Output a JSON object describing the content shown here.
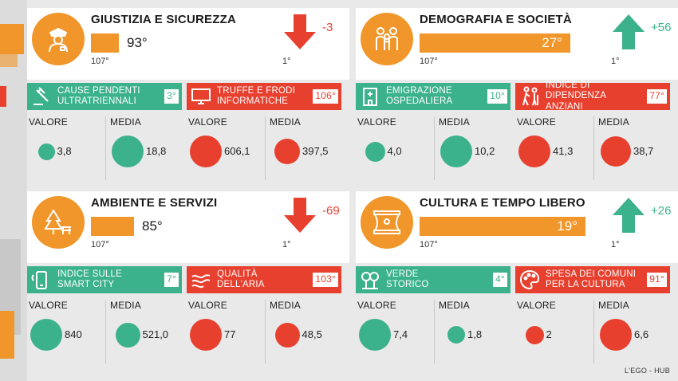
{
  "credit": "L'EGO - HUB",
  "axis_min": "107°",
  "axis_max": "1°",
  "stat_labels": {
    "valore": "VALORE",
    "media": "MEDIA"
  },
  "panels": [
    {
      "title": "GIUSTIZIA E SICUREZZA",
      "icon": "police-officer-icon",
      "rank": "93°",
      "rank_value": 93,
      "delta": "-3",
      "trend": "down",
      "indicators": [
        {
          "label_1": "CAUSE PENDENTI",
          "label_2": "ULTRATRIENNALI",
          "rank": "3°",
          "color": "green",
          "icon": "gavel-icon",
          "valore": "3,8",
          "media": "18,8",
          "valore_color": "green",
          "media_color": "green"
        },
        {
          "label_1": "TRUFFE E FRODI",
          "label_2": "INFORMATICHE",
          "rank": "106°",
          "color": "red",
          "icon": "computer-icon",
          "valore": "606,1",
          "media": "397,5",
          "valore_color": "red",
          "media_color": "red"
        }
      ]
    },
    {
      "title": "DEMOGRAFIA E SOCIETÀ",
      "icon": "family-icon",
      "rank": "27°",
      "rank_value": 27,
      "delta": "+56",
      "trend": "up",
      "indicators": [
        {
          "label_1": "EMIGRAZIONE",
          "label_2": "OSPEDALIERA",
          "rank": "10°",
          "color": "green",
          "icon": "hospital-icon",
          "valore": "4,0",
          "media": "10,2",
          "valore_color": "green",
          "media_color": "green"
        },
        {
          "label_1": "INDICE DI DIPENDENZA",
          "label_2": "ANZIANI",
          "rank": "77°",
          "color": "red",
          "icon": "elderly-icon",
          "valore": "41,3",
          "media": "38,7",
          "valore_color": "red",
          "media_color": "red"
        }
      ]
    },
    {
      "title": "AMBIENTE E SERVIZI",
      "icon": "tree-bench-icon",
      "rank": "85°",
      "rank_value": 85,
      "delta": "-69",
      "trend": "down",
      "indicators": [
        {
          "label_1": "INDICE SULLE",
          "label_2": "SMART CITY",
          "rank": "7°",
          "color": "green",
          "icon": "smartphone-icon",
          "valore": "840",
          "media": "521,0",
          "valore_color": "green",
          "media_color": "green"
        },
        {
          "label_1": "QUALITÀ",
          "label_2": "DELL'ARIA",
          "rank": "103°",
          "color": "red",
          "icon": "air-waves-icon",
          "valore": "77",
          "media": "48,5",
          "valore_color": "red",
          "media_color": "red"
        }
      ]
    },
    {
      "title": "CULTURA E TEMPO LIBERO",
      "icon": "theater-stage-icon",
      "rank": "19°",
      "rank_value": 19,
      "delta": "+26",
      "trend": "up",
      "indicators": [
        {
          "label_1": "VERDE",
          "label_2": "STORICO",
          "rank": "4°",
          "color": "green",
          "icon": "trees-icon",
          "valore": "7,4",
          "media": "1,8",
          "valore_color": "green",
          "media_color": "green"
        },
        {
          "label_1": "SPESA DEI COMUNI",
          "label_2": "PER LA CULTURA",
          "rank": "91°",
          "color": "red",
          "icon": "palette-icon",
          "valore": "2",
          "media": "6,6",
          "valore_color": "red",
          "media_color": "red"
        }
      ]
    }
  ]
}
